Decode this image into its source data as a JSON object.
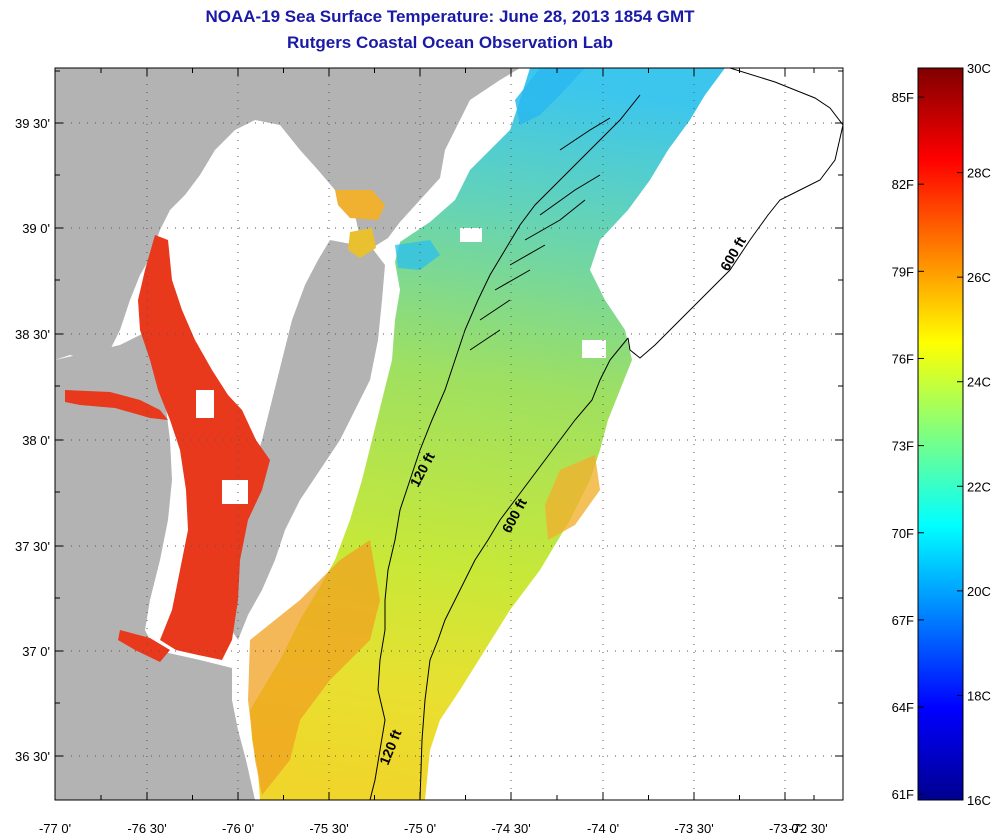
{
  "header": {
    "title": "NOAA-19 Sea Surface Temperature:  June 28, 2013 1854 GMT",
    "subtitle": "Rutgers Coastal Ocean Observation Lab"
  },
  "map": {
    "lat_labels": [
      "39 30'",
      "39 0'",
      "38 30'",
      "38 0'",
      "37 30'",
      "37 0'",
      "36 30'"
    ],
    "lon_labels": [
      "-77 0'",
      "-76 30'",
      "-76 0'",
      "-75 30'",
      "-75 0'",
      "-74 30'",
      "-74 0'",
      "-73 30'",
      "-73 0'",
      "-72 30'"
    ],
    "contour_labels": [
      "600 ft",
      "120 ft",
      "600 ft",
      "120 ft"
    ],
    "colors": {
      "land": "#b3b3b3",
      "no_data": "#ffffff",
      "warm": "#e8391d",
      "cool": "#2ec4e8"
    }
  },
  "colorbar": {
    "celsius_labels": [
      "30C",
      "28C",
      "26C",
      "24C",
      "22C",
      "20C",
      "18C",
      "16C"
    ],
    "fahrenheit_labels": [
      "85F",
      "82F",
      "79F",
      "76F",
      "73F",
      "70F",
      "67F",
      "64F",
      "61F"
    ],
    "range_c": [
      16,
      30
    ],
    "colormap": "jet"
  }
}
